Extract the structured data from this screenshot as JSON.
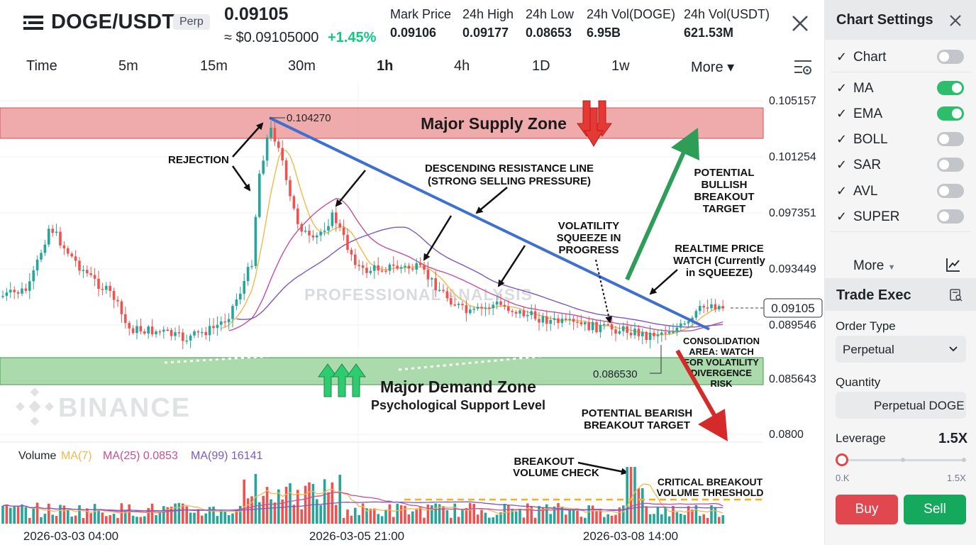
{
  "header": {
    "pair": "DOGE/USDT",
    "badge": "Perp",
    "last_price": "0.09105",
    "usd_price": "≈ $0.09105000",
    "change": "+1.45%",
    "stats": [
      {
        "label": "Mark Price",
        "value": "0.09106"
      },
      {
        "label": "24h High",
        "value": "0.09177"
      },
      {
        "label": "24h Low",
        "value": "0.08653"
      },
      {
        "label": "24h Vol(DOGE)",
        "value": "6.95B"
      },
      {
        "label": "24h Vol(USDT)",
        "value": "621.53M"
      }
    ]
  },
  "timeframes": {
    "items": [
      "Time",
      "5m",
      "15m",
      "30m",
      "1h",
      "4h",
      "1D",
      "1w",
      "More ▾"
    ],
    "active": "1h"
  },
  "chart": {
    "price_axis": [
      "0.105157",
      "0.101254",
      "0.097351",
      "0.093449",
      "0.089546",
      "0.085643",
      "0.0800"
    ],
    "time_axis": [
      "2026-03-03 04:00",
      "2026-03-05 21:00",
      "2026-03-08 14:00"
    ],
    "current_price_tag": "0.09105",
    "watermark": "PROFESSIONAL ANALYSIS",
    "exchange_watermark": "BINANCE",
    "supply_zone": "Major Supply Zone",
    "demand_zone": "Major Demand Zone",
    "demand_sub": "Psychological Support Level",
    "high_label": "0.104270",
    "low_label": "0.086530",
    "annotations": {
      "rejection": "REJECTION",
      "resistance_1": "DESCENDING RESISTANCE LINE",
      "resistance_2": "(STRONG SELLING PRESSURE)",
      "squeeze": [
        "VOLATILITY",
        "SQUEEZE IN",
        "PROGRESS"
      ],
      "bullish": [
        "POTENTIAL",
        "BULLISH",
        "BREAKOUT",
        "TARGET"
      ],
      "realtime": [
        "REALTIME PRICE",
        "WATCH (Currently",
        "in SQUEEZE)"
      ],
      "consolidation": [
        "CONSOLIDATION",
        "AREA: WATCH",
        "FOR VOLATILITY",
        "DIVERGENCE",
        "RISK"
      ],
      "bearish": [
        "POTENTIAL BEARISH",
        "BREAKOUT TARGET"
      ],
      "breakout_vol": [
        "BREAKOUT",
        "VOLUME CHECK"
      ],
      "vol_threshold": [
        "CRITICAL BREAKOUT",
        "VOLUME THRESHOLD"
      ]
    },
    "volume_legend": {
      "label": "Volume",
      "ma7": "MA(7)",
      "ma25": "MA(25) 0.0853",
      "ma99": "MA(99) 16141"
    }
  },
  "colors": {
    "up": "#26a69a",
    "down": "#ef5350",
    "supply": "#e57373",
    "demand": "#66bb6a",
    "resistance": "#3f6fd1",
    "ma7": "#f2b84b",
    "ma25": "#c64f9d",
    "ma99": "#7e57c2"
  },
  "panel": {
    "settings_title": "Chart Settings",
    "toggles": [
      {
        "label": "Chart",
        "on": false
      },
      {
        "label": "MA",
        "on": true
      },
      {
        "label": "EMA",
        "on": true
      },
      {
        "label": "BOLL",
        "on": false
      },
      {
        "label": "SAR",
        "on": false
      },
      {
        "label": "AVL",
        "on": false
      },
      {
        "label": "SUPER",
        "on": false
      }
    ],
    "more_label": "More",
    "trade_title": "Trade Exec",
    "order_type_label": "Order Type",
    "order_type_value": "Perpetual",
    "quantity_label": "Quantity",
    "quantity_value": "Perpetual DOGE",
    "leverage_label": "Leverage",
    "leverage_value": "1.5X",
    "leverage_min": "0.K",
    "leverage_max": "1.5X",
    "leverage_level": 0,
    "buy_label": "Buy",
    "sell_label": "Sell"
  }
}
